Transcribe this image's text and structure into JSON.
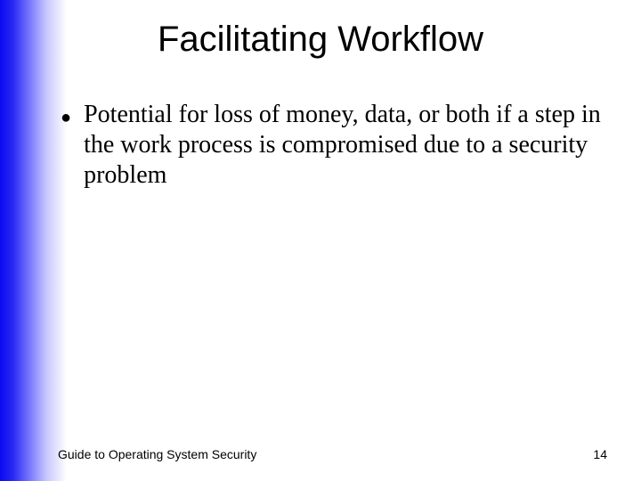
{
  "slide": {
    "title": "Facilitating Workflow",
    "bullets": [
      "Potential for loss of money, data, or both if a step in the work process is compromised due to a security problem"
    ],
    "footer_left": "Guide to Operating System Security",
    "page_number": "14"
  },
  "style": {
    "gradient_start": "#0a0af0",
    "gradient_end": "#ffffff",
    "title_font": "Arial",
    "title_fontsize": 40,
    "body_font": "Times New Roman",
    "body_fontsize": 28,
    "footer_font": "Arial",
    "footer_fontsize": 14,
    "text_color": "#000000",
    "background_color": "#ffffff"
  }
}
